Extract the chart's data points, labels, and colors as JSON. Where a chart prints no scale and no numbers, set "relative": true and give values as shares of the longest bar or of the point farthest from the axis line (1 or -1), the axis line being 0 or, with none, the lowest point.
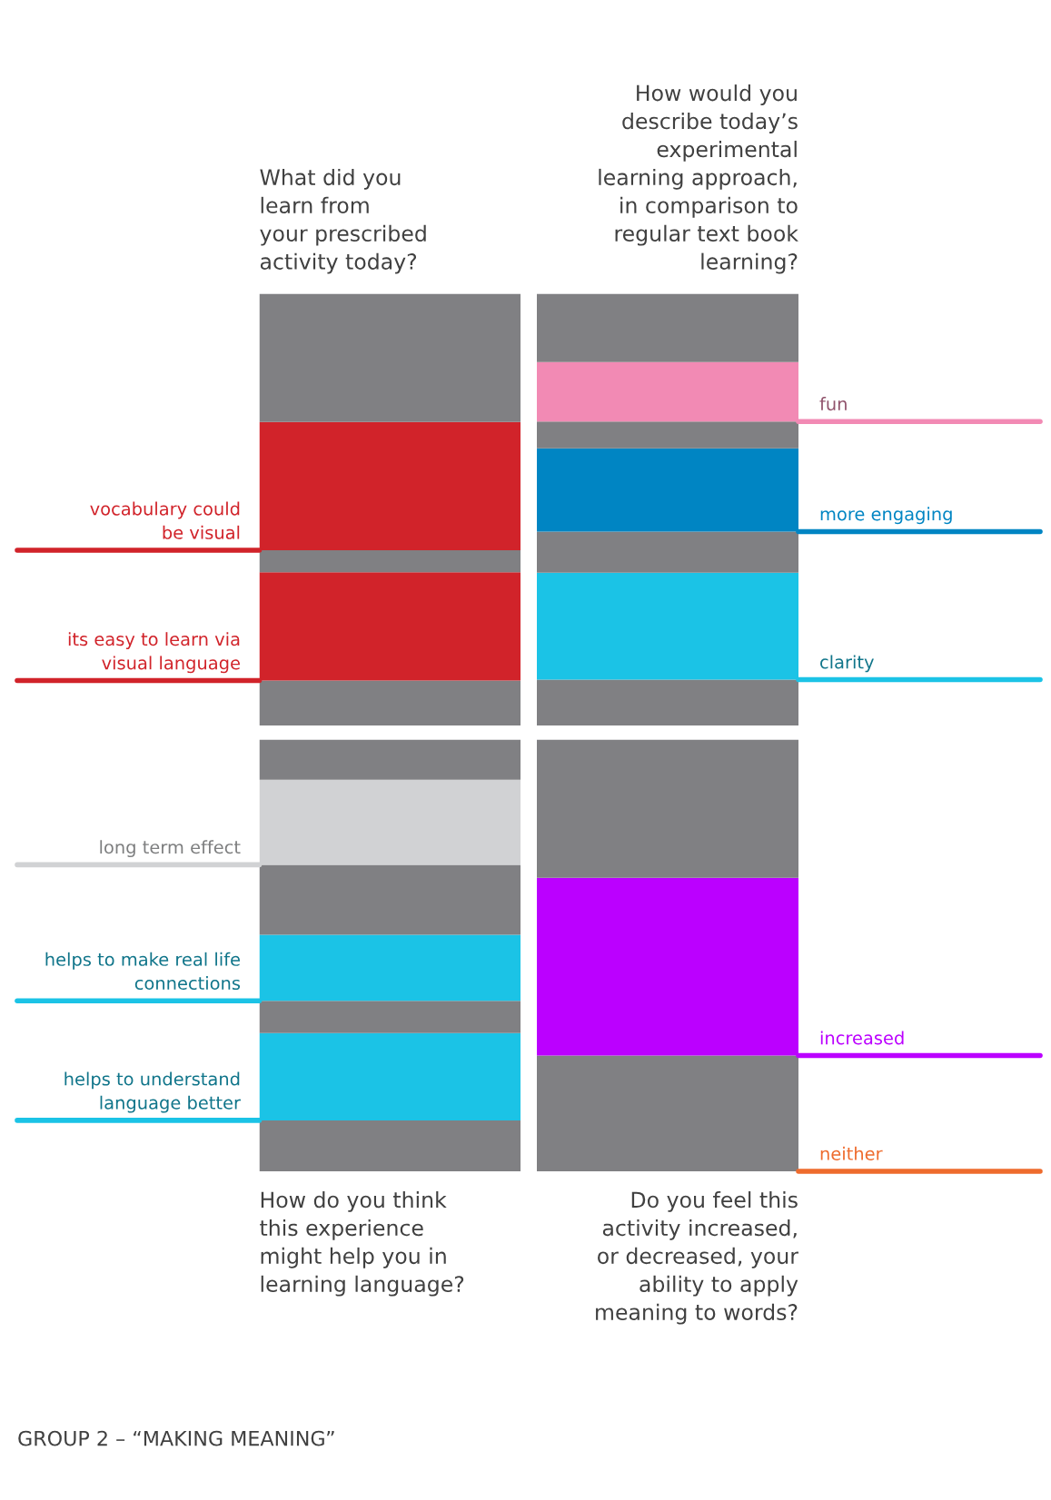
{
  "chart_data": [
    {
      "type": "bar",
      "stacked": true,
      "relative": true,
      "title": "What did you\nlearn from\nyour prescribed\nactivity today?",
      "categories": [
        null
      ],
      "series": [
        {
          "color": "#808083",
          "values": [
            0.104
          ]
        },
        {
          "name": "its easy to learn via\nvisual language",
          "color": "#d1232a",
          "values": [
            0.251
          ]
        },
        {
          "color": "#808083",
          "values": [
            0.051
          ]
        },
        {
          "name": "vocabulary could\nbe visual",
          "color": "#d1232a",
          "values": [
            0.297
          ]
        },
        {
          "color": "#808083",
          "values": [
            0.297
          ]
        }
      ]
    },
    {
      "type": "bar",
      "stacked": true,
      "relative": true,
      "title": "How would you\ndescribe today’s\nexperimental\nlearning approach,\nin comparison to\nregular text book\nlearning?",
      "categories": [
        null
      ],
      "series": [
        {
          "color": "#808083",
          "values": [
            0.106
          ]
        },
        {
          "name": "clarity",
          "color": "#1bc3e6",
          "values": [
            0.248
          ]
        },
        {
          "color": "#808083",
          "values": [
            0.095
          ]
        },
        {
          "name": "more engaging",
          "color": "#0085c3",
          "values": [
            0.193
          ]
        },
        {
          "color": "#808083",
          "values": [
            0.062
          ]
        },
        {
          "name": "fun",
          "color": "#f28ab4",
          "values": [
            0.138
          ]
        },
        {
          "color": "#808083",
          "values": [
            0.158
          ]
        }
      ]
    },
    {
      "type": "bar",
      "stacked": true,
      "relative": true,
      "title": "How do you think\nthis experience\nmight help you in\nlearning language?",
      "annotations": [
        "GROUP 2 – “MAKING MEANING”"
      ],
      "categories": [
        null
      ],
      "series": [
        {
          "color": "#808083",
          "values": [
            0.118
          ]
        },
        {
          "name": "helps to understand\nlanguage better",
          "color": "#1bc3e6",
          "values": [
            0.202
          ]
        },
        {
          "color": "#808083",
          "values": [
            0.075
          ]
        },
        {
          "name": "helps to make real life\nconnections",
          "color": "#1bc3e6",
          "values": [
            0.153
          ]
        },
        {
          "color": "#808083",
          "values": [
            0.162
          ]
        },
        {
          "name": "long term effect",
          "color": "#d1d2d4",
          "values": [
            0.197
          ]
        },
        {
          "color": "#808083",
          "values": [
            0.093
          ]
        }
      ]
    },
    {
      "type": "bar",
      "stacked": true,
      "relative": true,
      "title": "Do you feel this\nactivity increased,\nor decreased, your\nability to apply\nmeaning to words?",
      "categories": [
        null
      ],
      "series": [
        {
          "name": "neither",
          "color": "#ee6b2d",
          "values": [
            0
          ]
        },
        {
          "color": "#808083",
          "values": [
            0.268
          ]
        },
        {
          "name": "increased",
          "color": "#bb00ff",
          "values": [
            0.412
          ]
        },
        {
          "color": "#808083",
          "values": [
            0.32
          ]
        }
      ]
    }
  ]
}
